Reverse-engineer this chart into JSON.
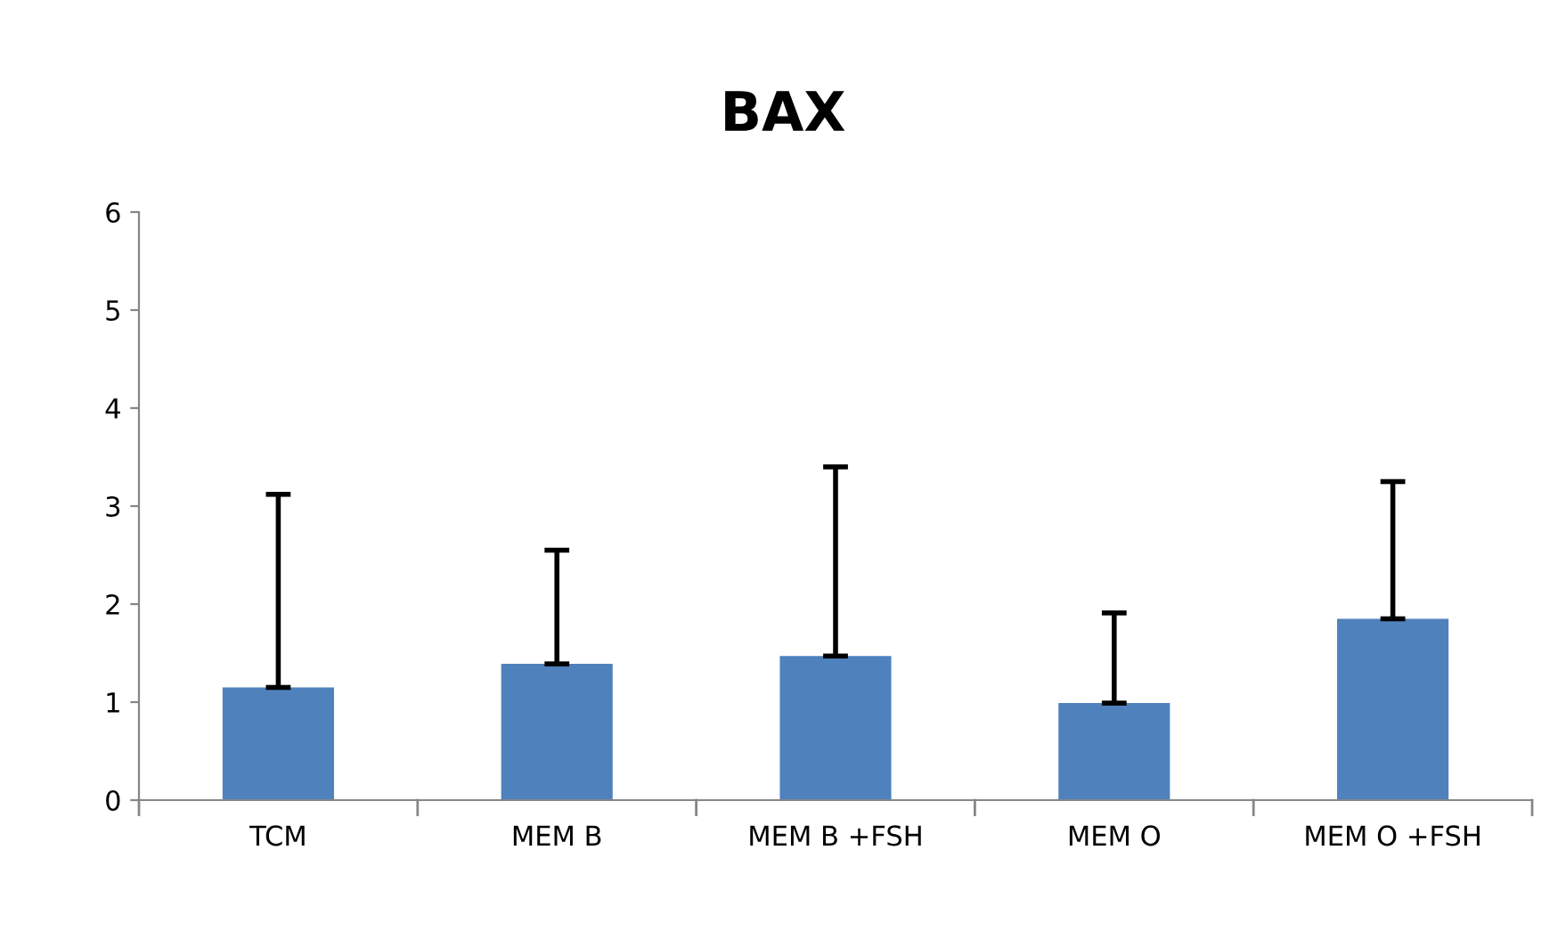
{
  "chart_data": {
    "type": "bar",
    "title": "BAX",
    "categories": [
      "TCM",
      "MEM B",
      "MEM B +FSH",
      "MEM O",
      "MEM O +FSH"
    ],
    "values": [
      1.15,
      1.39,
      1.47,
      0.99,
      1.85
    ],
    "errors": [
      [
        1.15,
        3.12
      ],
      [
        1.39,
        2.55
      ],
      [
        1.47,
        3.4
      ],
      [
        0.99,
        1.91
      ],
      [
        1.85,
        3.25
      ]
    ],
    "color": "#4f81bd",
    "ylim": [
      0,
      6
    ],
    "yticks": [
      0,
      1,
      2,
      3,
      4,
      5,
      6
    ],
    "grid": false,
    "legend": false
  }
}
